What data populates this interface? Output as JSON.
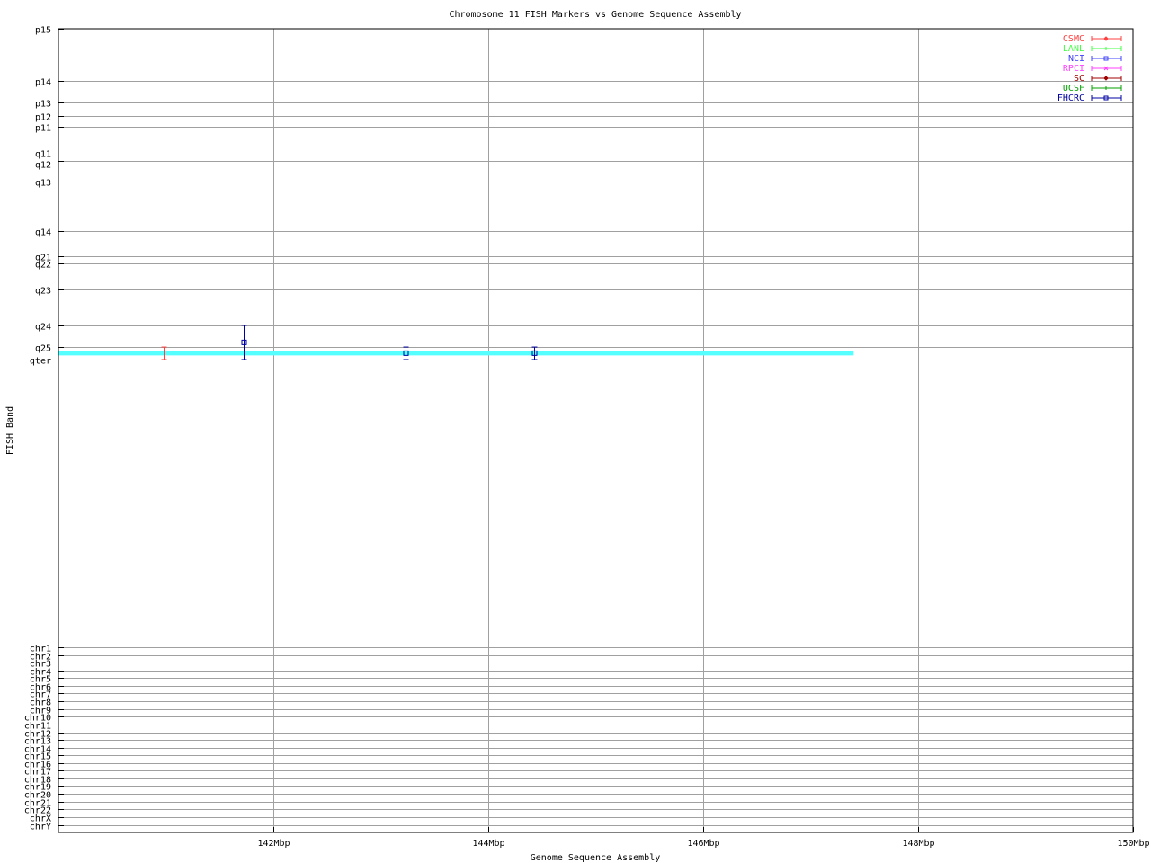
{
  "chart_data": {
    "type": "scatter",
    "title": "Chromosome 11 FISH Markers vs Genome Sequence Assembly",
    "xlabel": "Genome Sequence Assembly",
    "ylabel": "FISH Band",
    "xlim": [
      140,
      150
    ],
    "x_ticks": [
      {
        "v": 142,
        "label": "142Mbp"
      },
      {
        "v": 144,
        "label": "144Mbp"
      },
      {
        "v": 146,
        "label": "146Mbp"
      },
      {
        "v": 148,
        "label": "148Mbp"
      },
      {
        "v": 150,
        "label": "150Mbp"
      }
    ],
    "ylim": [
      0,
      328
    ],
    "y_inverted": true,
    "y_ticks": [
      {
        "v": 0,
        "label": "p15"
      },
      {
        "v": 21.3,
        "label": "p14"
      },
      {
        "v": 30.1,
        "label": "p13"
      },
      {
        "v": 35.6,
        "label": "p12"
      },
      {
        "v": 40.0,
        "label": "p11"
      },
      {
        "v": 51.7,
        "label": "q11"
      },
      {
        "v": 53.9,
        "label": "q12"
      },
      {
        "v": 62.4,
        "label": "q13"
      },
      {
        "v": 82.5,
        "label": "q14"
      },
      {
        "v": 92.8,
        "label": "q21"
      },
      {
        "v": 95.7,
        "label": "q22"
      },
      {
        "v": 106.4,
        "label": "q23"
      },
      {
        "v": 121.0,
        "label": "q24"
      },
      {
        "v": 129.9,
        "label": "q25"
      },
      {
        "v": 135.0,
        "label": "qter"
      },
      {
        "v": 252.4,
        "label": "chr1"
      },
      {
        "v": 255.6,
        "label": "chr2"
      },
      {
        "v": 258.7,
        "label": "chr3"
      },
      {
        "v": 261.9,
        "label": "chr4"
      },
      {
        "v": 265.0,
        "label": "chr5"
      },
      {
        "v": 268.2,
        "label": "chr6"
      },
      {
        "v": 271.3,
        "label": "chr7"
      },
      {
        "v": 274.5,
        "label": "chr8"
      },
      {
        "v": 277.6,
        "label": "chr9"
      },
      {
        "v": 280.8,
        "label": "chr10"
      },
      {
        "v": 283.9,
        "label": "chr11"
      },
      {
        "v": 287.1,
        "label": "chr12"
      },
      {
        "v": 290.2,
        "label": "chr13"
      },
      {
        "v": 293.4,
        "label": "chr14"
      },
      {
        "v": 296.5,
        "label": "chr15"
      },
      {
        "v": 299.7,
        "label": "chr16"
      },
      {
        "v": 302.8,
        "label": "chr17"
      },
      {
        "v": 306.0,
        "label": "chr18"
      },
      {
        "v": 309.1,
        "label": "chr19"
      },
      {
        "v": 312.3,
        "label": "chr20"
      },
      {
        "v": 315.4,
        "label": "chr21"
      },
      {
        "v": 318.6,
        "label": "chr22"
      },
      {
        "v": 321.7,
        "label": "chrX"
      },
      {
        "v": 324.9,
        "label": "chrY"
      }
    ],
    "grid": true,
    "legend_position": "top-right",
    "legend": [
      {
        "name": "CSMC",
        "color": "#ff4040",
        "marker": "diamond"
      },
      {
        "name": "LANL",
        "color": "#40ff40",
        "marker": "plus"
      },
      {
        "name": "NCI",
        "color": "#4040ff",
        "marker": "square"
      },
      {
        "name": "RPCI",
        "color": "#ff40ff",
        "marker": "cross"
      },
      {
        "name": "SC",
        "color": "#a00000",
        "marker": "diamond"
      },
      {
        "name": "UCSF",
        "color": "#00a000",
        "marker": "plus"
      },
      {
        "name": "FHCRC",
        "color": "#0000a0",
        "marker": "square"
      }
    ],
    "series": [
      {
        "name": "CSMC",
        "color": "#ff4040",
        "points": [
          {
            "x": 140.98,
            "y": 132.4,
            "ylow": 129.9,
            "yhigh": 135.0
          }
        ]
      },
      {
        "name": "FHCRC",
        "color": "#0000a0",
        "points": [
          {
            "x": 141.72,
            "y": 128.0,
            "ylow": 121.0,
            "yhigh": 135.0
          },
          {
            "x": 143.23,
            "y": 132.4,
            "ylow": 129.9,
            "yhigh": 135.0
          },
          {
            "x": 144.43,
            "y": 132.4,
            "ylow": 129.9,
            "yhigh": 135.0
          }
        ]
      },
      {
        "color": "#55ffff",
        "type": "line",
        "x": [
          140.0,
          147.4
        ],
        "y": [
          132.4,
          132.4
        ]
      }
    ]
  }
}
